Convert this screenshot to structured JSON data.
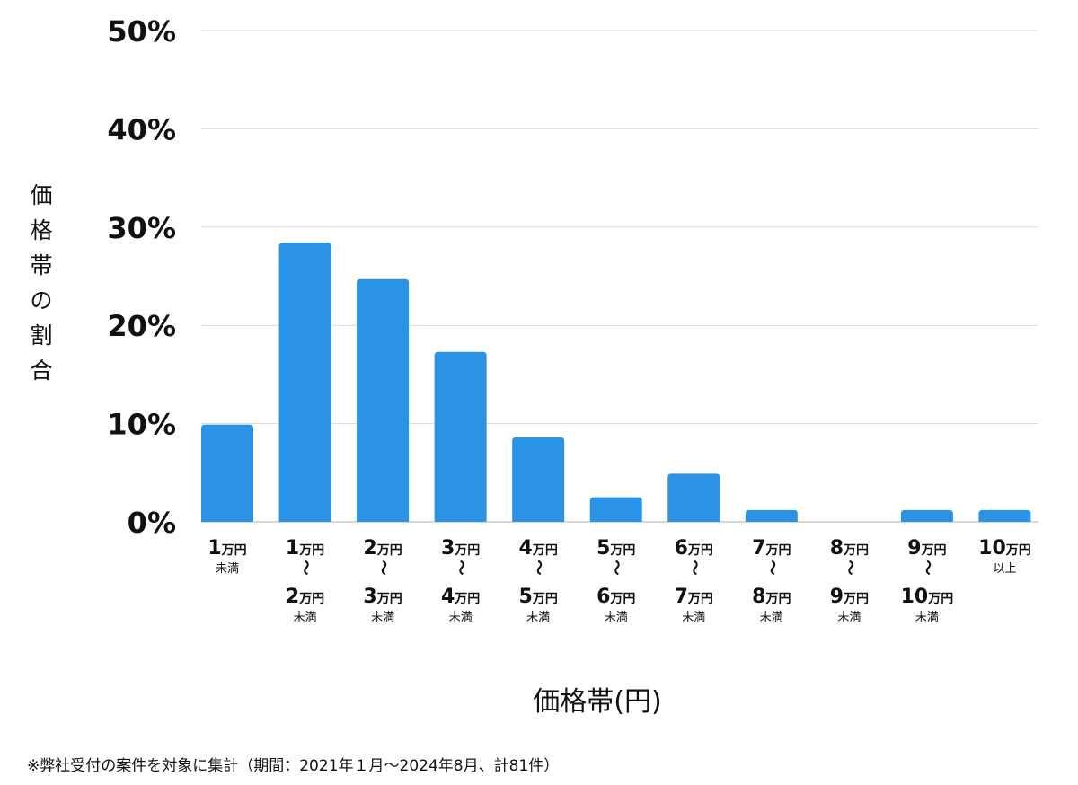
{
  "chart_data": {
    "type": "bar",
    "categories": [
      {
        "lines": [
          {
            "num": "1",
            "unit": "万円"
          }
        ],
        "suffix": "未満"
      },
      {
        "lines": [
          {
            "num": "1",
            "unit": "万円"
          },
          {
            "num": "2",
            "unit": "万円"
          }
        ],
        "suffix": "未満"
      },
      {
        "lines": [
          {
            "num": "2",
            "unit": "万円"
          },
          {
            "num": "3",
            "unit": "万円"
          }
        ],
        "suffix": "未満"
      },
      {
        "lines": [
          {
            "num": "3",
            "unit": "万円"
          },
          {
            "num": "4",
            "unit": "万円"
          }
        ],
        "suffix": "未満"
      },
      {
        "lines": [
          {
            "num": "4",
            "unit": "万円"
          },
          {
            "num": "5",
            "unit": "万円"
          }
        ],
        "suffix": "未満"
      },
      {
        "lines": [
          {
            "num": "5",
            "unit": "万円"
          },
          {
            "num": "6",
            "unit": "万円"
          }
        ],
        "suffix": "未満"
      },
      {
        "lines": [
          {
            "num": "6",
            "unit": "万円"
          },
          {
            "num": "7",
            "unit": "万円"
          }
        ],
        "suffix": "未満"
      },
      {
        "lines": [
          {
            "num": "7",
            "unit": "万円"
          },
          {
            "num": "8",
            "unit": "万円"
          }
        ],
        "suffix": "未満"
      },
      {
        "lines": [
          {
            "num": "8",
            "unit": "万円"
          },
          {
            "num": "9",
            "unit": "万円"
          }
        ],
        "suffix": "未満"
      },
      {
        "lines": [
          {
            "num": "9",
            "unit": "万円"
          },
          {
            "num": "10",
            "unit": "万円"
          }
        ],
        "suffix": "未満"
      },
      {
        "lines": [
          {
            "num": "10",
            "unit": "万円"
          }
        ],
        "suffix": "以上"
      }
    ],
    "range_separator": "〜",
    "values": [
      9.9,
      28.4,
      24.7,
      17.3,
      8.6,
      2.5,
      4.9,
      1.2,
      0,
      1.2,
      1.2
    ],
    "ylim": [
      0,
      50
    ],
    "yticks": [
      0,
      10,
      20,
      30,
      40,
      50
    ],
    "ytick_format": "{v}%",
    "ylabel": "価格帯の割合",
    "xlabel": "価格帯(円)",
    "grid": true,
    "bar_color": "#2a93e6",
    "grid_color": "#d9d9d9"
  },
  "footnote": "※弊社受付の案件を対象に集計（期間：2021年１月〜2024年8月、計81件）"
}
